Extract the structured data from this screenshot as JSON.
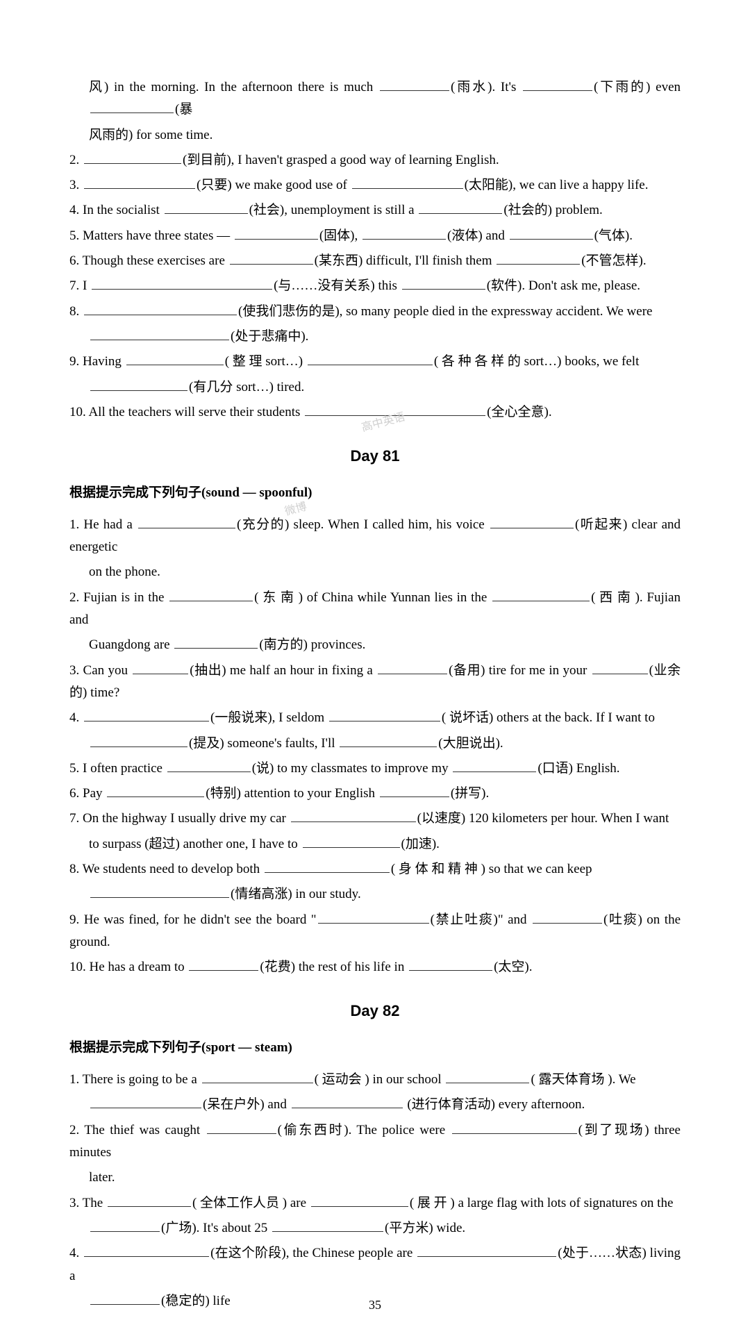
{
  "top": {
    "line1_pre": "风) in the morning. In the afternoon there is much ",
    "line1_h1": "(雨水). It's ",
    "line1_h2": "(下雨的) even ",
    "line1_h3": "(暴",
    "line2": "风雨的) for some time.",
    "q2a": "2. ",
    "q2b": "(到目前), I haven't grasped a good way of learning English.",
    "q3a": "3. ",
    "q3b": "(只要) we make good use of ",
    "q3c": "(太阳能), we can live a happy life.",
    "q4a": "4. In the socialist ",
    "q4b": "(社会), unemployment is still a ",
    "q4c": "(社会的) problem.",
    "q5a": "5. Matters have three states — ",
    "q5b": "(固体), ",
    "q5c": "(液体) and ",
    "q5d": "(气体).",
    "q6a": "6. Though these exercises are ",
    "q6b": "(某东西) difficult, I'll finish them ",
    "q6c": "(不管怎样).",
    "q7a": "7. I ",
    "q7b": "(与……没有关系) this ",
    "q7c": "(软件). Don't ask me, please.",
    "q8a": "8. ",
    "q8b": "(使我们悲伤的是), so many people died in the expressway accident. We were",
    "q8c": "(处于悲痛中).",
    "q9a": "9. Having ",
    "q9b": "( 整 理 sort…) ",
    "q9c": "( 各 种 各 样 的 sort…) books, we felt",
    "q9d": "(有几分 sort…) tired.",
    "q10a": "10. All the teachers will serve their students ",
    "q10b": "(全心全意)."
  },
  "day81": {
    "title": "Day 81",
    "section": "根据提示完成下列句子(sound — spoonful)",
    "q1a": "1. He had a ",
    "q1b": "(充分的) sleep. When I called him, his voice ",
    "q1c": "(听起来) clear and energetic",
    "q1d": "on the phone.",
    "q2a": "2. Fujian is in the ",
    "q2b": "( 东 南 ) of China while Yunnan lies in the ",
    "q2c": "( 西 南 ). Fujian and",
    "q2d": "Guangdong are ",
    "q2e": "(南方的) provinces.",
    "q3a": "3. Can you ",
    "q3b": "(抽出) me half an hour in fixing a ",
    "q3c": "(备用) tire for me in your ",
    "q3d": "(业余的) time?",
    "q4a": "4. ",
    "q4b": "(一般说来), I seldom ",
    "q4c": "( 说坏话) others at the back. If I want to",
    "q4d": "(提及) someone's faults, I'll ",
    "q4e": "(大胆说出).",
    "q5a": "5. I often practice ",
    "q5b": "(说) to my classmates to improve my ",
    "q5c": "(口语) English.",
    "q6a": "6. Pay ",
    "q6b": "(特别) attention to your English ",
    "q6c": "(拼写).",
    "q7a": "7. On the highway I usually drive my car ",
    "q7b": "(以速度) 120 kilometers per hour. When I want",
    "q7c": "to surpass (超过) another one, I have to ",
    "q7d": "(加速).",
    "q8a": "8. We students need to develop both ",
    "q8b": "( 身 体 和 精 神 ) so that we can keep",
    "q8c": "(情绪高涨) in our study.",
    "q9a": "9. He was fined, for he didn't see the board \"",
    "q9b": "(禁止吐痰)\" and ",
    "q9c": "(吐痰) on the ground.",
    "q10a": "10. He has a dream to ",
    "q10b": "(花费) the rest of his life in ",
    "q10c": "(太空)."
  },
  "day82": {
    "title": "Day 82",
    "section": "根据提示完成下列句子(sport — steam)",
    "q1a": "1. There is going to be a ",
    "q1b": "( 运动会 ) in our school ",
    "q1c": "( 露天体育场 ). We",
    "q1d": "(呆在户外) and ",
    "q1e": " (进行体育活动) every afternoon.",
    "q2a": "2. The thief was caught ",
    "q2b": "(偷东西时). The police were ",
    "q2c": "(到了现场) three minutes",
    "q2d": "later.",
    "q3a": "3. The ",
    "q3b": "( 全体工作人员 ) are ",
    "q3c": "( 展 开 ) a large flag with lots of signatures on the",
    "q3d": "(广场). It's about 25 ",
    "q3e": "(平方米) wide.",
    "q4a": "4. ",
    "q4b": "(在这个阶段), the Chinese people are ",
    "q4c": "(处于……状态) living a",
    "q4d": "(稳定的) life"
  },
  "pageNum": "35",
  "watermark1": "高中英语",
  "watermark2": "微博"
}
